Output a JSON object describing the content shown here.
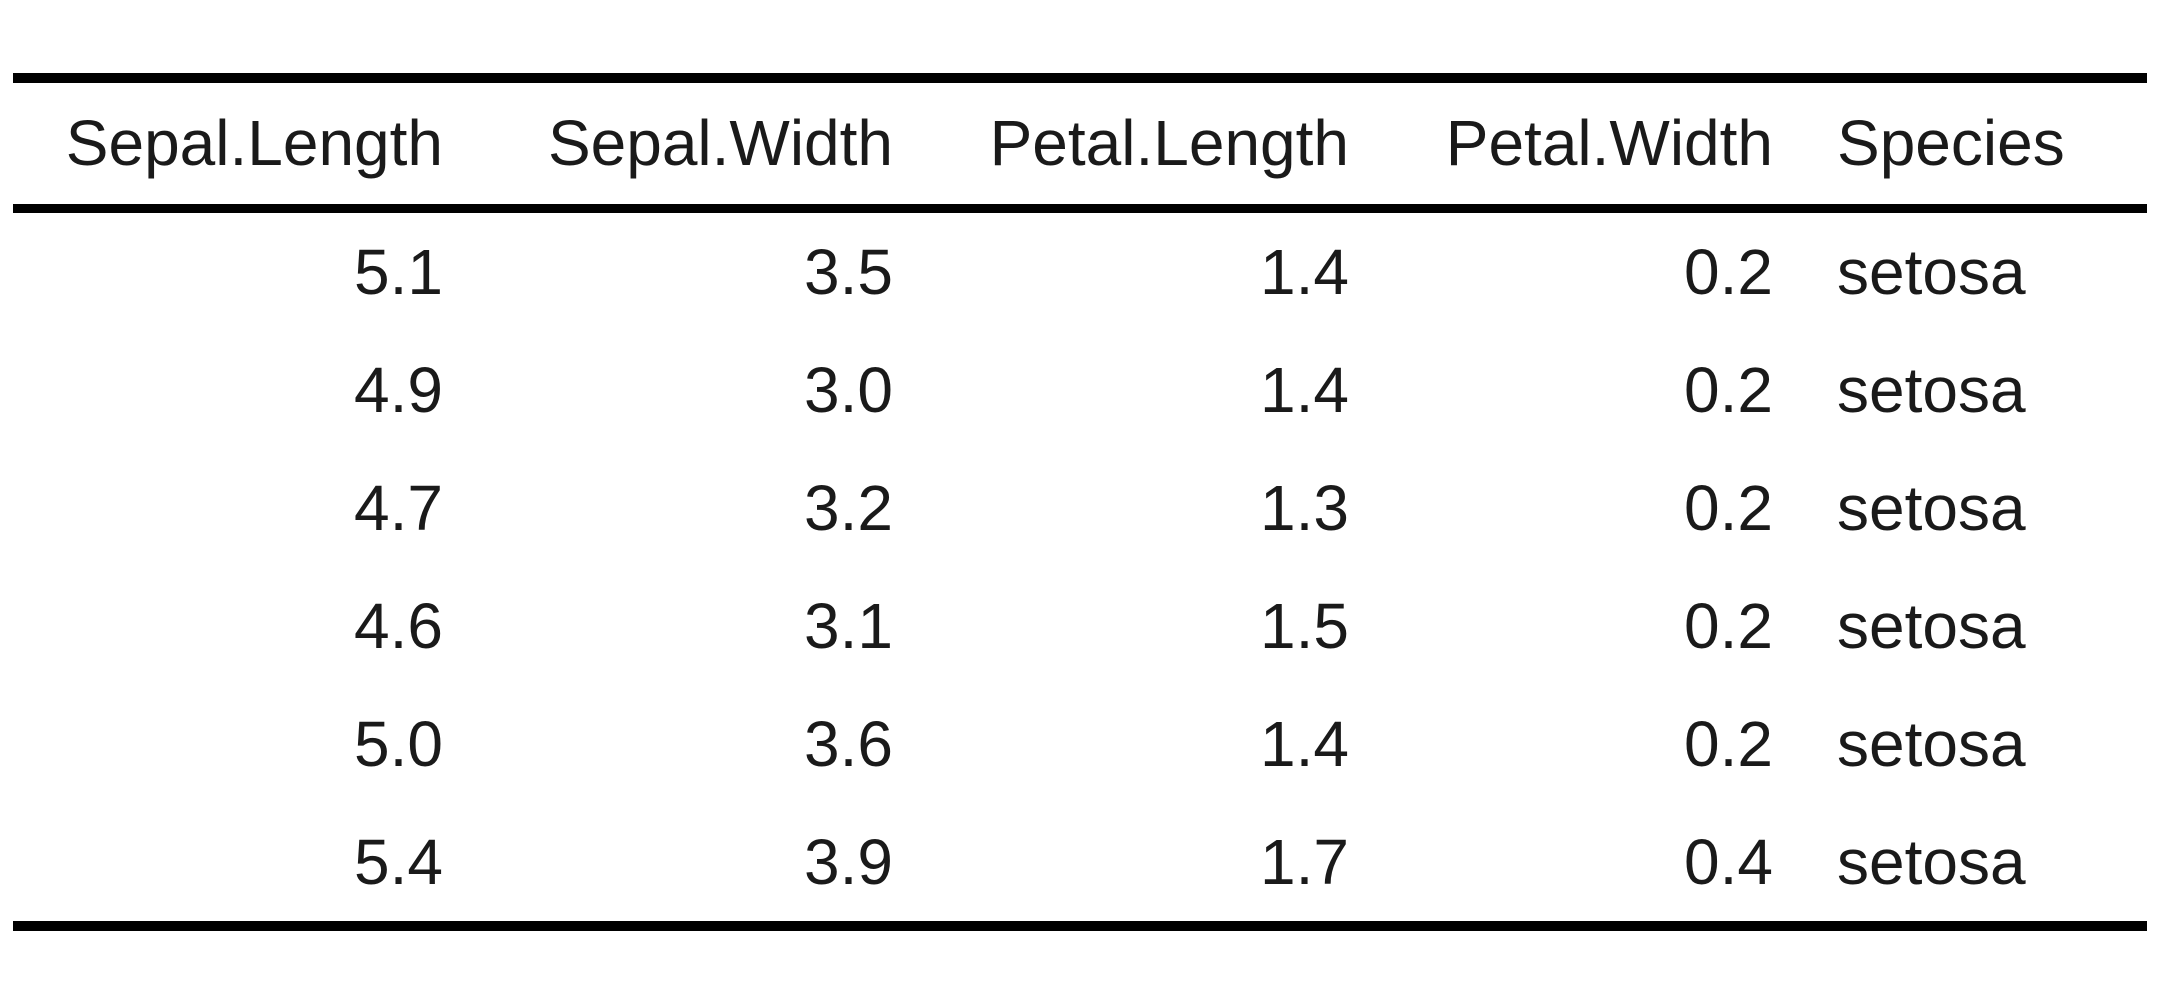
{
  "table": {
    "columns": [
      "Sepal.Length",
      "Sepal.Width",
      "Petal.Length",
      "Petal.Width",
      "Species"
    ],
    "rows": [
      [
        "5.1",
        "3.5",
        "1.4",
        "0.2",
        "setosa"
      ],
      [
        "4.9",
        "3.0",
        "1.4",
        "0.2",
        "setosa"
      ],
      [
        "4.7",
        "3.2",
        "1.3",
        "0.2",
        "setosa"
      ],
      [
        "4.6",
        "3.1",
        "1.5",
        "0.2",
        "setosa"
      ],
      [
        "5.0",
        "3.6",
        "1.4",
        "0.2",
        "setosa"
      ],
      [
        "5.4",
        "3.9",
        "1.7",
        "0.4",
        "setosa"
      ]
    ]
  }
}
